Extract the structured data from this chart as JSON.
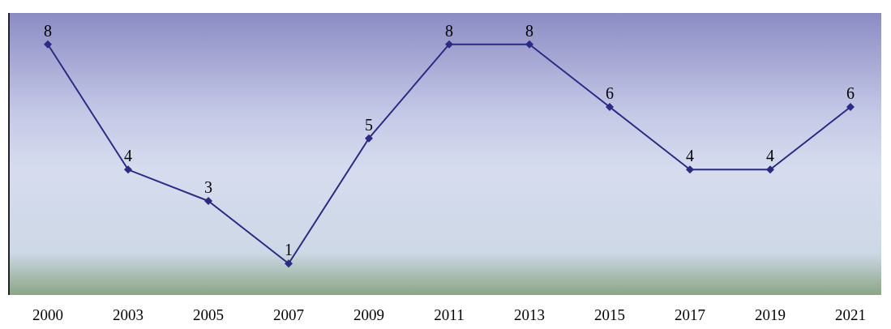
{
  "chart_data": {
    "type": "line",
    "categories": [
      "2000",
      "2003",
      "2005",
      "2007",
      "2009",
      "2011",
      "2013",
      "2015",
      "2017",
      "2019",
      "2021"
    ],
    "series": [
      {
        "color": "#2b2b84",
        "values": [
          8,
          4,
          3,
          1,
          5,
          8,
          8,
          6,
          4,
          4,
          6
        ]
      }
    ],
    "ylim": [
      0,
      9
    ],
    "tick_labels": "x",
    "data_labels": true,
    "marker": "diamond",
    "line_style": "solid",
    "grid": false
  }
}
